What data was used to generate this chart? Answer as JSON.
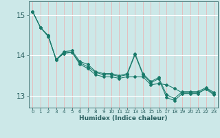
{
  "xlabel": "Humidex (Indice chaleur)",
  "bg_color": "#cce8e8",
  "grid_color_x": "#e8b8b8",
  "grid_color_y": "#ffffff",
  "line_color": "#1a7a6a",
  "x_data": [
    0,
    1,
    2,
    3,
    4,
    5,
    6,
    7,
    8,
    9,
    10,
    11,
    12,
    13,
    14,
    15,
    16,
    17,
    18,
    19,
    20,
    21,
    22,
    23
  ],
  "series1": [
    15.1,
    14.7,
    14.5,
    13.9,
    14.05,
    14.08,
    13.82,
    13.72,
    13.58,
    13.52,
    13.52,
    13.48,
    13.52,
    14.02,
    13.52,
    13.32,
    13.42,
    12.95,
    12.88,
    13.05,
    13.05,
    13.05,
    13.18,
    13.05
  ],
  "series2": [
    15.1,
    14.7,
    14.48,
    13.88,
    14.08,
    14.08,
    13.78,
    13.68,
    13.52,
    13.47,
    13.47,
    13.43,
    13.47,
    13.47,
    13.47,
    13.27,
    13.3,
    13.27,
    13.18,
    13.07,
    13.07,
    13.07,
    13.16,
    13.02
  ],
  "series3": [
    15.1,
    14.7,
    14.47,
    13.9,
    14.1,
    14.12,
    13.85,
    13.78,
    13.6,
    13.55,
    13.55,
    13.5,
    13.55,
    14.05,
    13.55,
    13.35,
    13.45,
    13.02,
    12.93,
    13.1,
    13.1,
    13.1,
    13.2,
    13.08
  ],
  "ylim": [
    12.7,
    15.35
  ],
  "yticks": [
    13,
    14,
    15
  ],
  "xlim": [
    -0.5,
    23.5
  ],
  "tick_color": "#2a6060",
  "xlabel_fontsize": 6.5,
  "ylabel_fontsize": 7.5,
  "xtick_fontsize": 5.2,
  "ytick_fontsize": 7.5
}
